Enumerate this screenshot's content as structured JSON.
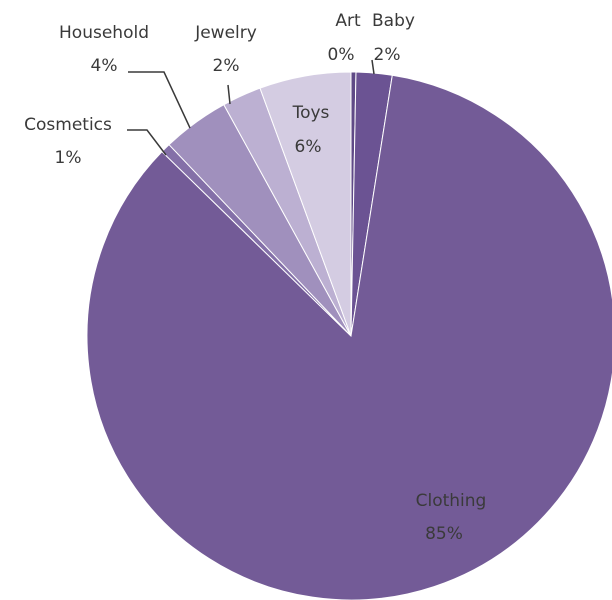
{
  "chart_data": {
    "type": "pie",
    "title": "",
    "start_angle_deg": 0,
    "direction": "clockwise",
    "slices": [
      {
        "label": "Art",
        "value": 0.3,
        "display": "0%",
        "color": "#5f4a86"
      },
      {
        "label": "Baby",
        "value": 2.2,
        "display": "2%",
        "color": "#6b5393"
      },
      {
        "label": "Clothing",
        "value": 84.8,
        "display": "85%",
        "color": "#735b97"
      },
      {
        "label": "Cosmetics",
        "value": 0.6,
        "display": "1%",
        "color": "#8470a8"
      },
      {
        "label": "Household",
        "value": 4.1,
        "display": "4%",
        "color": "#a090bd"
      },
      {
        "label": "Jewelry",
        "value": 2.4,
        "display": "2%",
        "color": "#bcb0d2"
      },
      {
        "label": "Toys",
        "value": 5.6,
        "display": "6%",
        "color": "#d4cce2"
      }
    ]
  }
}
